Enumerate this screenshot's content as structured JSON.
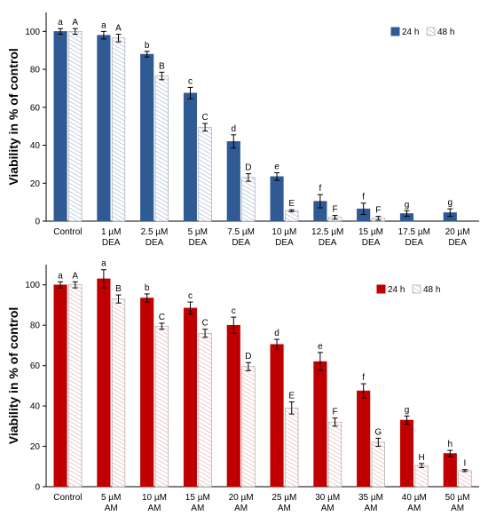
{
  "chart_data": [
    {
      "type": "bar",
      "title": "",
      "xlabel": "",
      "ylabel": "Viability in % of control",
      "ylim": [
        0,
        110
      ],
      "yticks": [
        0,
        20,
        40,
        60,
        80,
        100
      ],
      "grid": false,
      "legend_position": "top-right",
      "categories": [
        [
          "Control"
        ],
        [
          "1 µM",
          "DEA"
        ],
        [
          "2.5 µM",
          "DEA"
        ],
        [
          "5 µM",
          "DEA"
        ],
        [
          "7.5 µM",
          "DEA"
        ],
        [
          "10 µM",
          "DEA"
        ],
        [
          "12.5 µM",
          "DEA"
        ],
        [
          "15 µM",
          "DEA"
        ],
        [
          "17.5 µM",
          "DEA"
        ],
        [
          "20 µM",
          "DEA"
        ]
      ],
      "series": [
        {
          "name": "24 h",
          "color": "#2f5a94",
          "values": [
            100,
            98,
            88,
            67.5,
            42,
            23.5,
            10.5,
            6.5,
            4,
            4.5
          ],
          "errors": [
            1.5,
            2,
            1.5,
            3,
            3.5,
            2,
            3.5,
            3,
            1.5,
            2
          ],
          "labels": [
            "a",
            "a",
            "b",
            "c",
            "d",
            "e",
            "f",
            "f",
            "g",
            "g"
          ]
        },
        {
          "name": "48 h",
          "color": "#dde4ef",
          "values": [
            100,
            96.5,
            76.5,
            49.5,
            23,
            5.5,
            2,
            1.5,
            null,
            null
          ],
          "errors": [
            1.5,
            2,
            2,
            2,
            2,
            0.5,
            1,
            1,
            null,
            null
          ],
          "labels": [
            "A",
            "A",
            "B",
            "C",
            "D",
            "E",
            "F",
            "F",
            "",
            ""
          ]
        }
      ]
    },
    {
      "type": "bar",
      "title": "",
      "xlabel": "",
      "ylabel": "Viability in % of control",
      "ylim": [
        0,
        110
      ],
      "yticks": [
        0,
        20,
        40,
        60,
        80,
        100
      ],
      "grid": false,
      "legend_position": "top-right",
      "categories": [
        [
          "Control"
        ],
        [
          "5 µM",
          "AM"
        ],
        [
          "10 µM",
          "AM"
        ],
        [
          "15 µM",
          "AM"
        ],
        [
          "20 µM",
          "AM"
        ],
        [
          "25 µM",
          "AM"
        ],
        [
          "30 µM",
          "AM"
        ],
        [
          "35 µM",
          "AM"
        ],
        [
          "40 µM",
          "AM"
        ],
        [
          "50 µM",
          "AM"
        ]
      ],
      "series": [
        {
          "name": "24 h",
          "color": "#c00000",
          "values": [
            100,
            103,
            93.5,
            88.5,
            80,
            70.5,
            62,
            47.5,
            33,
            16.5
          ],
          "errors": [
            1.5,
            4.5,
            2,
            3,
            4,
            2.5,
            4.5,
            3.5,
            2,
            1.5
          ],
          "labels": [
            "a",
            "a",
            "b",
            "c",
            "c",
            "d",
            "e",
            "f",
            "g",
            "h"
          ]
        },
        {
          "name": "48 h",
          "color": "#f6dede",
          "values": [
            100,
            93,
            79.5,
            76,
            59.5,
            39,
            32,
            22,
            10.5,
            8
          ],
          "errors": [
            1.5,
            2,
            1.5,
            2,
            2,
            3,
            2,
            2,
            1,
            0.5
          ],
          "labels": [
            "A",
            "B",
            "C",
            "C",
            "D",
            "E",
            "F",
            "G",
            "H",
            "I"
          ]
        }
      ]
    }
  ]
}
